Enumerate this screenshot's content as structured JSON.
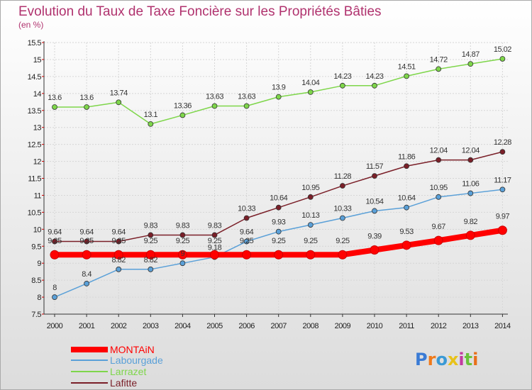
{
  "chart_data": {
    "type": "line",
    "title": "Evolution du Taux de Taxe Foncière sur les Propriétés Bâties",
    "subtitle": "(en %)",
    "x": [
      "2000",
      "2001",
      "2002",
      "2003",
      "2004",
      "2005",
      "2006",
      "2007",
      "2008",
      "2009",
      "2010",
      "2011",
      "2012",
      "2013",
      "2014"
    ],
    "ylim": [
      7.5,
      15.5
    ],
    "yticks": [
      "7.5",
      "8",
      "8.5",
      "9",
      "9.5",
      "10",
      "10.5",
      "11",
      "11.5",
      "12",
      "12.5",
      "13",
      "13.5",
      "14",
      "14.5",
      "15",
      "15.5"
    ],
    "grid": true,
    "legend_position": "bottom-left",
    "series": [
      {
        "name": "MONTAiN",
        "color": "#ff0000",
        "values": [
          9.25,
          9.25,
          9.25,
          9.25,
          9.25,
          9.25,
          9.25,
          9.25,
          9.25,
          9.25,
          9.39,
          9.53,
          9.67,
          9.82,
          9.97
        ],
        "labels": [
          "9.25",
          "9.25",
          "9.25",
          "9.25",
          "9.25",
          "9.25",
          "9.25",
          "9.25",
          "9.25",
          "9.25",
          "9.39",
          "9.53",
          "9.67",
          "9.82",
          "9.97"
        ]
      },
      {
        "name": "Labourgade",
        "color": "#5aa0d8",
        "values": [
          8,
          8.4,
          8.82,
          8.82,
          9,
          9.18,
          9.64,
          9.93,
          10.13,
          10.33,
          10.54,
          10.64,
          10.95,
          11.06,
          11.17
        ],
        "labels": [
          "8",
          "8.4",
          "8.82",
          "8.82",
          "9",
          "9.18",
          "9.64",
          "9.93",
          "10.13",
          "10.33",
          "10.54",
          "10.64",
          "10.95",
          "11.06",
          "11.17"
        ]
      },
      {
        "name": "Larrazet",
        "color": "#7ed64a",
        "values": [
          13.6,
          13.6,
          13.74,
          13.1,
          13.36,
          13.63,
          13.63,
          13.9,
          14.04,
          14.23,
          14.23,
          14.51,
          14.72,
          14.87,
          15.02
        ],
        "labels": [
          "13.6",
          "13.6",
          "13.74",
          "13.1",
          "13.36",
          "13.63",
          "13.63",
          "13.9",
          "14.04",
          "14.23",
          "14.23",
          "14.51",
          "14.72",
          "14.87",
          "15.02"
        ]
      },
      {
        "name": "Lafitte",
        "color": "#7a1f28",
        "values": [
          9.64,
          9.64,
          9.64,
          9.83,
          9.83,
          9.83,
          10.33,
          10.64,
          10.95,
          11.28,
          11.57,
          11.86,
          12.04,
          12.04,
          12.28
        ],
        "labels": [
          "9.64",
          "9.64",
          "9.64",
          "9.83",
          "9.83",
          "9.83",
          "10.33",
          "10.64",
          "10.95",
          "11.28",
          "11.57",
          "11.86",
          "12.04",
          "12.04",
          "12.28"
        ]
      }
    ]
  },
  "logo": {
    "text": "Proxiti",
    "letters": [
      "P",
      "r",
      "o",
      "x",
      "i",
      "t",
      "i"
    ],
    "colors": [
      "#3a7bd5",
      "#f07a1a",
      "#3a9ad5",
      "#e8c21a",
      "#c23aa0",
      "#6ac23a",
      "#e8701a"
    ]
  }
}
